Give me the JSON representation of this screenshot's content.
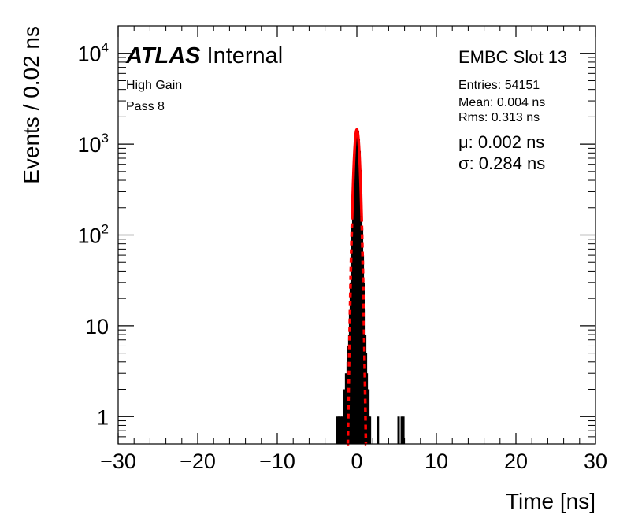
{
  "chart_data": {
    "type": "histogram",
    "title": "",
    "xlabel": "Time [ns]",
    "ylabel": "Events / 0.02 ns",
    "xlim": [
      -30,
      30
    ],
    "ylim": [
      0.5,
      20000
    ],
    "yscale": "log",
    "x_ticks": [
      -30,
      -20,
      -10,
      0,
      10,
      20,
      30
    ],
    "x_tick_labels": [
      "−30",
      "−20",
      "−10",
      "0",
      "10",
      "20",
      "30"
    ],
    "y_ticks": [
      {
        "value": 1,
        "base": "1",
        "exp": ""
      },
      {
        "value": 10,
        "base": "10",
        "exp": ""
      },
      {
        "value": 100,
        "base": "10",
        "exp": "2"
      },
      {
        "value": 1000,
        "base": "10",
        "exp": "3"
      },
      {
        "value": 10000,
        "base": "10",
        "exp": "4"
      }
    ],
    "bin_width": 0.02,
    "histogram_color": "#000000",
    "fit_color": "#ff0000",
    "fit": {
      "mu": 0.002,
      "sigma": 0.284,
      "amplitude": 1450,
      "draw_range": [
        -0.6,
        0.6
      ],
      "dashed_range": [
        -1.2,
        1.2
      ]
    },
    "bins": [
      {
        "x": -2.5,
        "y": 1
      },
      {
        "x": -2.3,
        "y": 1
      },
      {
        "x": -2.1,
        "y": 1
      },
      {
        "x": -1.9,
        "y": 1
      },
      {
        "x": -1.7,
        "y": 1
      },
      {
        "x": -1.6,
        "y": 2
      },
      {
        "x": -1.5,
        "y": 1
      },
      {
        "x": -1.4,
        "y": 3
      },
      {
        "x": -1.3,
        "y": 2
      },
      {
        "x": -1.2,
        "y": 4
      },
      {
        "x": -1.1,
        "y": 6
      },
      {
        "x": -1.0,
        "y": 8
      },
      {
        "x": -0.9,
        "y": 15
      },
      {
        "x": -0.8,
        "y": 30
      },
      {
        "x": -0.7,
        "y": 60
      },
      {
        "x": -0.6,
        "y": 120
      },
      {
        "x": -0.5,
        "y": 280
      },
      {
        "x": -0.4,
        "y": 520
      },
      {
        "x": -0.3,
        "y": 840
      },
      {
        "x": -0.2,
        "y": 1150
      },
      {
        "x": -0.1,
        "y": 1400
      },
      {
        "x": 0.0,
        "y": 1500
      },
      {
        "x": 0.1,
        "y": 1400
      },
      {
        "x": 0.2,
        "y": 1150
      },
      {
        "x": 0.3,
        "y": 840
      },
      {
        "x": 0.4,
        "y": 520
      },
      {
        "x": 0.5,
        "y": 280
      },
      {
        "x": 0.6,
        "y": 120
      },
      {
        "x": 0.7,
        "y": 60
      },
      {
        "x": 0.8,
        "y": 30
      },
      {
        "x": 0.9,
        "y": 15
      },
      {
        "x": 1.0,
        "y": 8
      },
      {
        "x": 1.1,
        "y": 5
      },
      {
        "x": 1.2,
        "y": 3
      },
      {
        "x": 1.3,
        "y": 2
      },
      {
        "x": 1.4,
        "y": 2
      },
      {
        "x": 1.5,
        "y": 1
      },
      {
        "x": 1.6,
        "y": 1
      },
      {
        "x": 2.6,
        "y": 1
      },
      {
        "x": 5.2,
        "y": 1
      },
      {
        "x": 5.6,
        "y": 1
      },
      {
        "x": 5.8,
        "y": 1
      }
    ]
  },
  "labels": {
    "atlas": "ATLAS",
    "internal": "Internal",
    "gain": "High Gain",
    "pass": "Pass 8",
    "slot": "EMBC Slot 13",
    "entries": "Entries: 54151",
    "mean": "Mean: 0.004 ns",
    "rms": "Rms: 0.313 ns",
    "mu": "μ: 0.002 ns",
    "sigma": "σ: 0.284 ns"
  }
}
